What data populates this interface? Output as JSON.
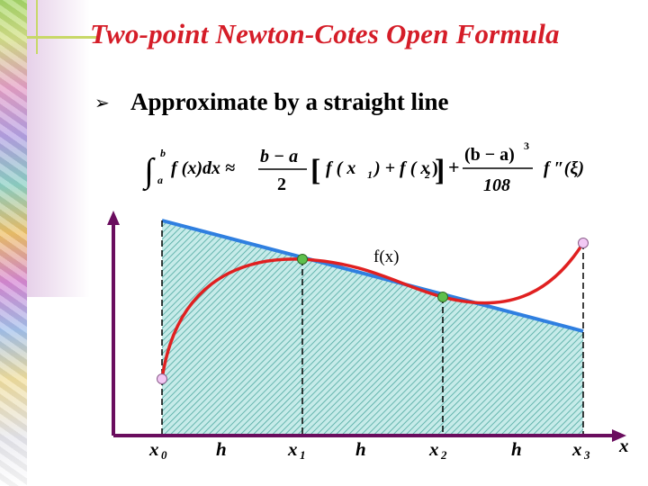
{
  "slide": {
    "title": "Two-point Newton-Cotes Open Formula",
    "bullet_icon": "arrow-bullet-icon",
    "bullet": "Approximate by a straight line"
  },
  "formula": {
    "integral_sign": "∫",
    "lower_limit": "a",
    "upper_limit": "b",
    "integrand": "f (x)dx ≈",
    "coef_numerator": "b − a",
    "coef_denominator": "2",
    "bracket_open": "[",
    "term_f1": "f ( x",
    "sub1": "1",
    "term_plus": ") + f ( x",
    "sub2": "2",
    "term_close": ")",
    "bracket_close": "]",
    "plus": "+",
    "err_numerator": "(b − a)",
    "err_power": "3",
    "err_denominator": "108",
    "err_term": "f ″(ξ)"
  },
  "plot": {
    "curve_label": "f(x)",
    "axis_label_x": "x",
    "x_ticks": [
      {
        "name": "x",
        "sub": "0"
      },
      {
        "name": "h",
        "sub": ""
      },
      {
        "name": "x",
        "sub": "1"
      },
      {
        "name": "h",
        "sub": ""
      },
      {
        "name": "x",
        "sub": "2"
      },
      {
        "name": "h",
        "sub": ""
      },
      {
        "name": "x",
        "sub": "3"
      }
    ],
    "colors": {
      "axis": "#6a0d5e",
      "curve": "#e02020",
      "line": "#2f7fe0",
      "hatch": "#4fa8a0",
      "hatch_bg": "#c6ebe9",
      "node_green": "#5ec04c",
      "node_pink": "#f2c8f4",
      "title": "#d51d28"
    }
  }
}
